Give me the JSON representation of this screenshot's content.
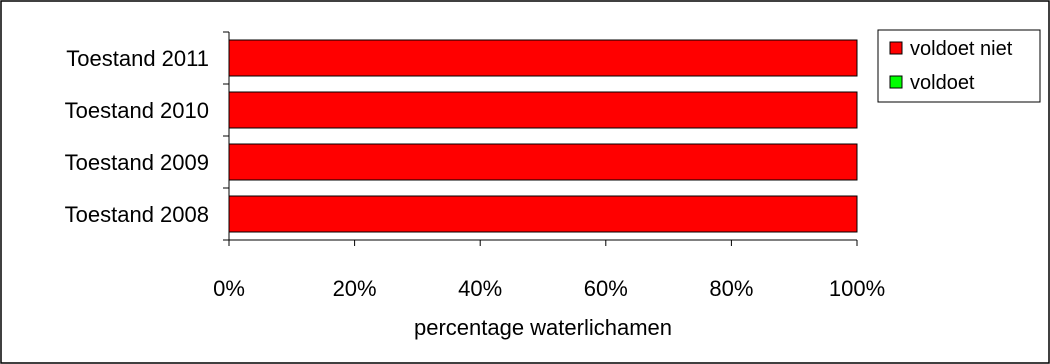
{
  "chart_data": {
    "type": "bar",
    "orientation": "horizontal",
    "stacked": true,
    "percent_stacked": true,
    "categories": [
      "Toestand 2011",
      "Toestand 2010",
      "Toestand 2009",
      "Toestand 2008"
    ],
    "series": [
      {
        "name": "voldoet niet",
        "color": "#ff0000",
        "values": [
          100,
          100,
          100,
          100
        ]
      },
      {
        "name": "voldoet",
        "color": "#00ff00",
        "values": [
          0,
          0,
          0,
          0
        ]
      }
    ],
    "xlabel": "percentage waterlichamen",
    "ylabel": "",
    "xlim": [
      0,
      100
    ],
    "x_ticks": [
      "0%",
      "20%",
      "40%",
      "60%",
      "80%",
      "100%"
    ],
    "grid": false,
    "legend_position": "top-right"
  }
}
